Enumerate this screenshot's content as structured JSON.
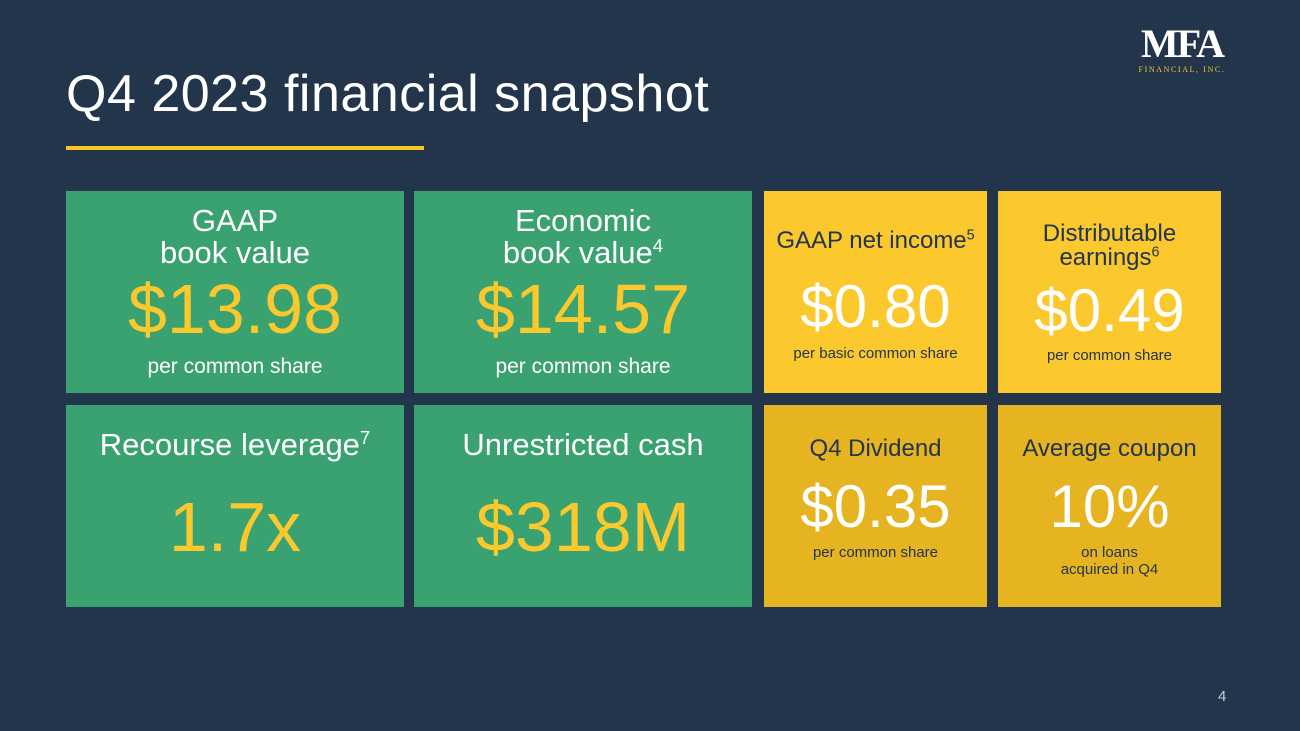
{
  "slide": {
    "title": "Q4 2023 financial snapshot",
    "page_number": "4"
  },
  "logo": {
    "mark": "MFA",
    "subtitle": "FINANCIAL, INC."
  },
  "colors": {
    "background": "#22354b",
    "accent": "#f5c523",
    "green_card": "#3aa170",
    "yellow_card": "#fbc92e",
    "gold_card": "#e6b420"
  },
  "cards": {
    "gaap_book_value": {
      "label_line1": "GAAP",
      "label_line2": "book value",
      "value": "$13.98",
      "sub": "per common share"
    },
    "economic_book_value": {
      "label_line1": "Economic",
      "label_line2": "book value",
      "footnote": "4",
      "value": "$14.57",
      "sub": "per common share"
    },
    "gaap_net_income": {
      "label": "GAAP net income",
      "footnote": "5",
      "value": "$0.80",
      "sub": "per basic common share"
    },
    "distributable_earnings": {
      "label_line1": "Distributable",
      "label_line2": "earnings",
      "footnote": "6",
      "value": "$0.49",
      "sub": "per common share"
    },
    "recourse_leverage": {
      "label": "Recourse leverage",
      "footnote": "7",
      "value": "1.7x"
    },
    "unrestricted_cash": {
      "label": "Unrestricted cash",
      "value": "$318M"
    },
    "q4_dividend": {
      "label": "Q4 Dividend",
      "value": "$0.35",
      "sub": "per common share"
    },
    "average_coupon": {
      "label": "Average coupon",
      "value": "10%",
      "sub_line1": "on loans",
      "sub_line2": "acquired in Q4"
    }
  }
}
